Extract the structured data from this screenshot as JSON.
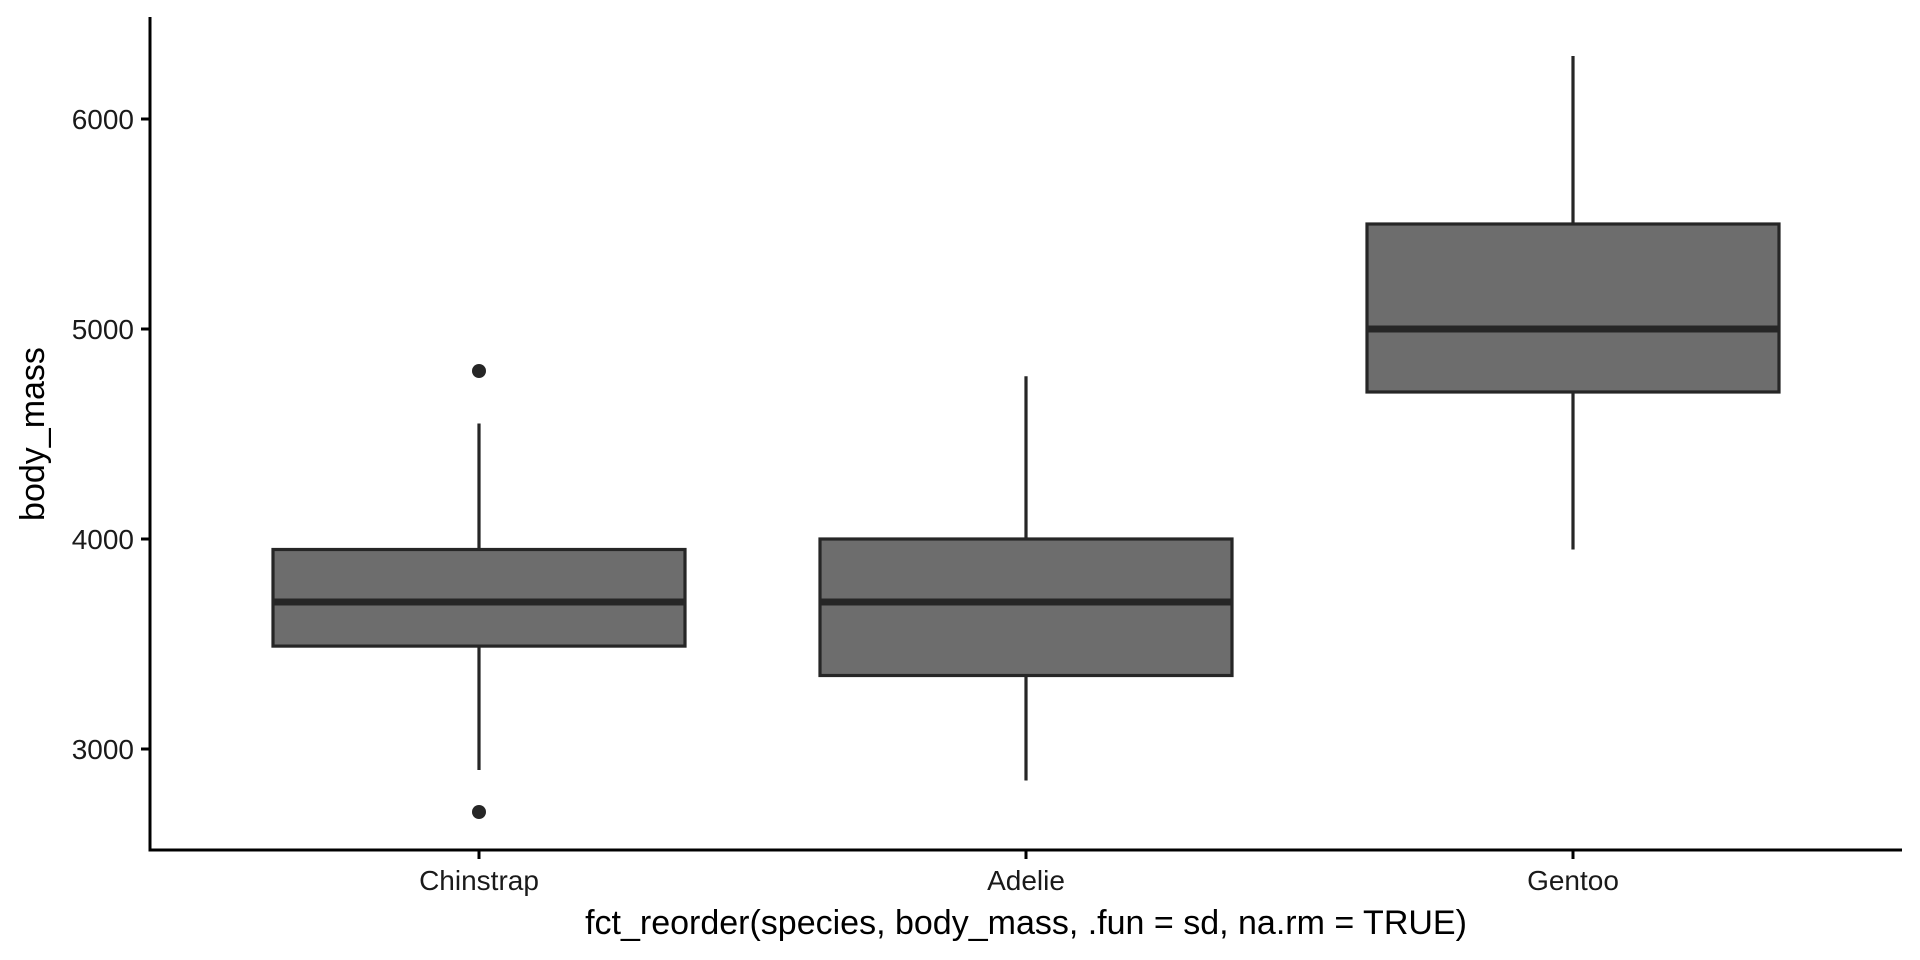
{
  "chart_data": {
    "type": "boxplot",
    "title": "",
    "xlabel": "fct_reorder(species, body_mass, .fun = sd, na.rm = TRUE)",
    "ylabel": "body_mass",
    "categories": [
      "Chinstrap",
      "Adelie",
      "Gentoo"
    ],
    "ylim": [
      2530,
      6480
    ],
    "yticks": [
      3000,
      4000,
      5000,
      6000
    ],
    "grid": false,
    "legend": null,
    "series": [
      {
        "name": "Chinstrap",
        "whisker_low": 2900,
        "q1": 3490,
        "median": 3700,
        "q3": 3950,
        "whisker_high": 4550,
        "outliers": [
          2700,
          4800
        ]
      },
      {
        "name": "Adelie",
        "whisker_low": 2850,
        "q1": 3350,
        "median": 3700,
        "q3": 4000,
        "whisker_high": 4775,
        "outliers": []
      },
      {
        "name": "Gentoo",
        "whisker_low": 3950,
        "q1": 4700,
        "median": 5000,
        "q3": 5500,
        "whisker_high": 6300,
        "outliers": []
      }
    ],
    "colors": {
      "box_fill": "#6d6d6d",
      "box_line": "#262626",
      "axis": "#000000",
      "text": "#1a1a1a"
    }
  }
}
